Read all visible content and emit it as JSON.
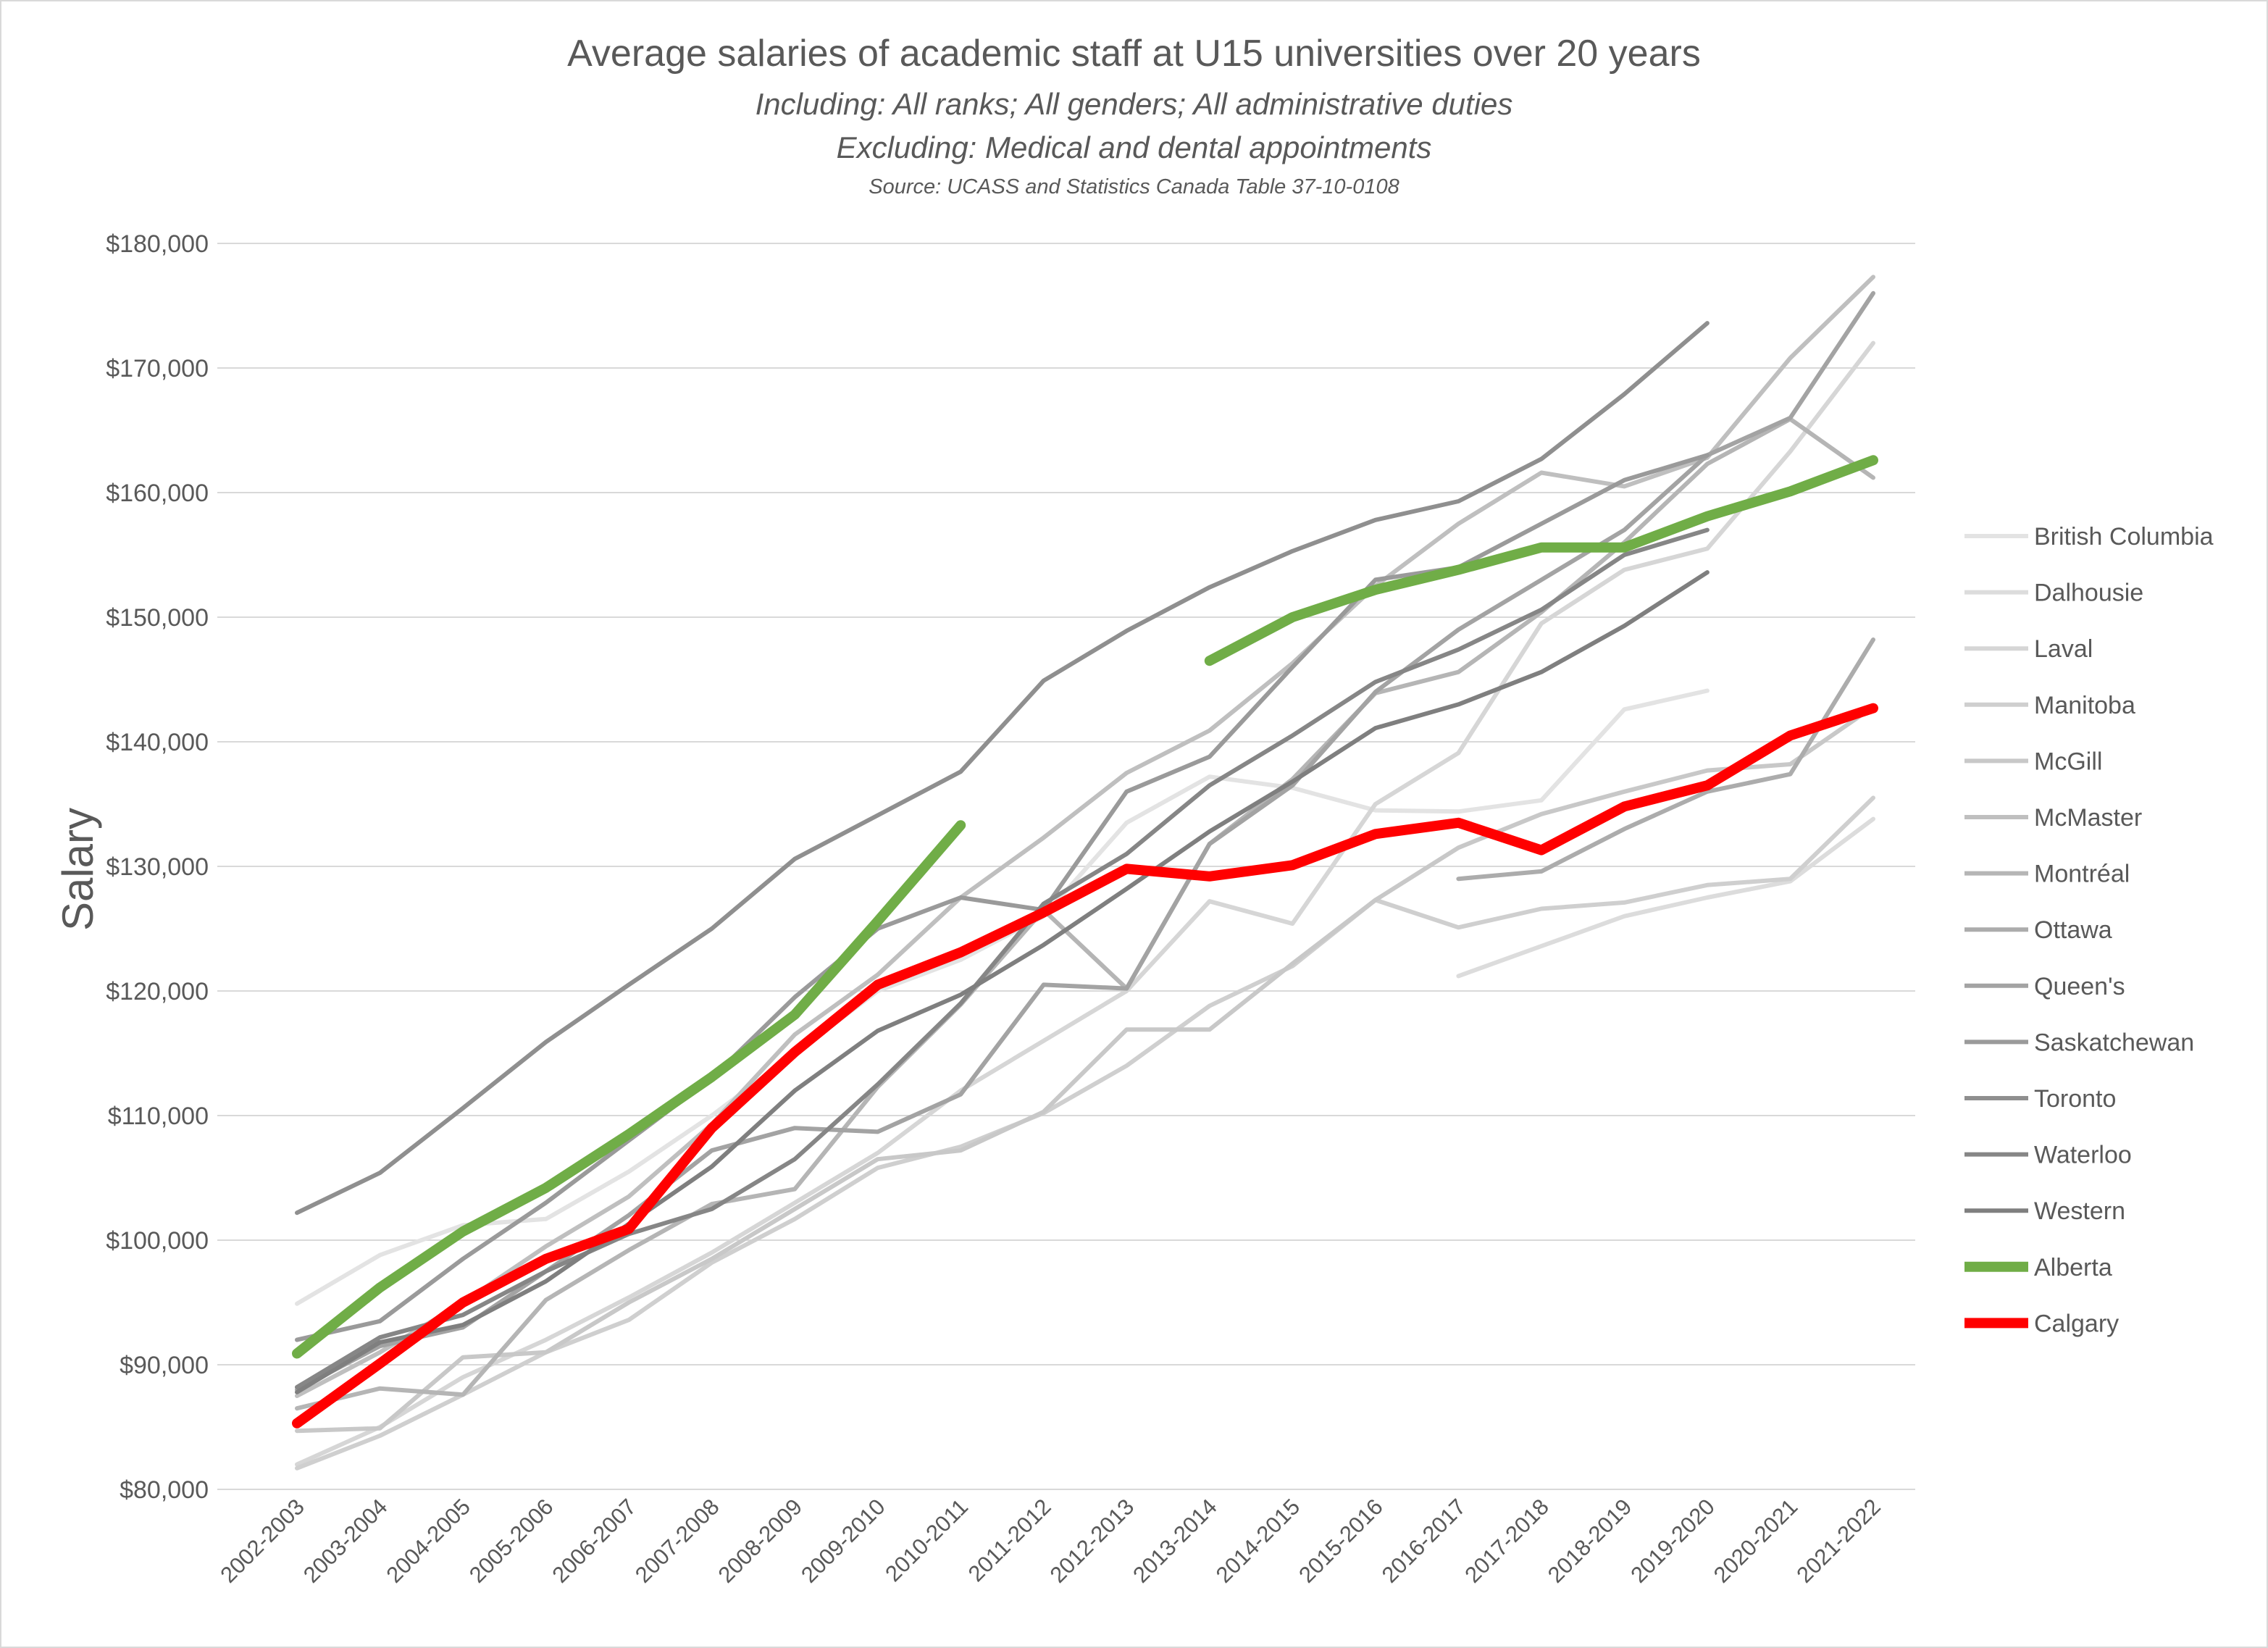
{
  "chart_data": {
    "type": "line",
    "title": "Average salaries of academic staff at U15 universities over 20 years",
    "subtitle_lines": [
      "Including: All ranks; All genders; All administrative duties",
      "Excluding: Medical and dental appointments"
    ],
    "source": "Source: UCASS and Statistics Canada Table 37-10-0108",
    "xlabel": "",
    "ylabel": "Salary",
    "ylim": [
      80000,
      180000
    ],
    "ytick_step": 10000,
    "ytick_labels": [
      "$80,000",
      "$90,000",
      "$100,000",
      "$110,000",
      "$120,000",
      "$130,000",
      "$140,000",
      "$150,000",
      "$160,000",
      "$170,000",
      "$180,000"
    ],
    "grid": true,
    "legend_position": "right",
    "categories": [
      "2002-2003",
      "2003-2004",
      "2004-2005",
      "2005-2006",
      "2006-2007",
      "2007-2008",
      "2008-2009",
      "2009-2010",
      "2010-2011",
      "2011-2012",
      "2012-2013",
      "2013-2014",
      "2014-2015",
      "2015-2016",
      "2016-2017",
      "2017-2018",
      "2018-2019",
      "2019-2020",
      "2020-2021",
      "2021-2022"
    ],
    "series": [
      {
        "name": "British Columbia",
        "color": "#e3e3e3",
        "width": 6,
        "values": [
          94900,
          98800,
          101200,
          101700,
          105500,
          110000,
          115000,
          120000,
          122500,
          126000,
          133500,
          137200,
          136300,
          134500,
          134400,
          135300,
          142600,
          144100,
          null,
          null
        ]
      },
      {
        "name": "Dalhousie",
        "color": "#dcdcdc",
        "width": 6,
        "values": [
          null,
          null,
          null,
          null,
          null,
          null,
          null,
          null,
          null,
          null,
          null,
          null,
          null,
          null,
          121200,
          123600,
          126000,
          127500,
          128800,
          133800
        ]
      },
      {
        "name": "Laval",
        "color": "#d6d6d6",
        "width": 6,
        "values": [
          82000,
          85000,
          89000,
          92000,
          95400,
          99000,
          103000,
          107000,
          112000,
          116000,
          120000,
          127200,
          125400,
          135000,
          139100,
          149500,
          153800,
          155500,
          163300,
          172000
        ]
      },
      {
        "name": "Manitoba",
        "color": "#cfcfcf",
        "width": 6,
        "values": [
          81700,
          84300,
          87600,
          91000,
          93600,
          98200,
          101700,
          105800,
          107500,
          110200,
          114000,
          118800,
          122000,
          127300,
          125100,
          126600,
          127100,
          128500,
          129000,
          135500
        ]
      },
      {
        "name": "McGill",
        "color": "#c8c8c8",
        "width": 6,
        "values": [
          84700,
          84900,
          90600,
          91000,
          95000,
          98500,
          102500,
          106500,
          107200,
          110300,
          116900,
          116900,
          122200,
          127300,
          131500,
          134200,
          136000,
          137700,
          138200,
          142800
        ]
      },
      {
        "name": "McMaster",
        "color": "#bfbfbf",
        "width": 6,
        "values": [
          87500,
          91000,
          95000,
          99500,
          103500,
          109300,
          116500,
          121300,
          127500,
          132300,
          137500,
          140900,
          146300,
          152500,
          157500,
          161600,
          160500,
          162800,
          170800,
          177300
        ]
      },
      {
        "name": "Montréal",
        "color": "#b5b5b5",
        "width": 6,
        "values": [
          86500,
          88100,
          87600,
          95200,
          99200,
          102900,
          104100,
          112300,
          118900,
          126500,
          120200,
          131800,
          137000,
          143900,
          145600,
          150400,
          156000,
          162300,
          165900,
          161200
        ]
      },
      {
        "name": "Ottawa",
        "color": "#acacac",
        "width": 6,
        "values": [
          null,
          null,
          null,
          null,
          null,
          null,
          null,
          null,
          null,
          null,
          null,
          null,
          null,
          null,
          129000,
          129600,
          133000,
          136000,
          137400,
          148200
        ]
      },
      {
        "name": "Queen's",
        "color": "#a3a3a3",
        "width": 6,
        "values": [
          88000,
          91500,
          93000,
          97500,
          102000,
          107200,
          109000,
          108700,
          111700,
          120500,
          120200,
          131800,
          136500,
          144000,
          149000,
          153000,
          157000,
          163000,
          166000,
          176000
        ]
      },
      {
        "name": "Saskatchewan",
        "color": "#9a9a9a",
        "width": 6,
        "values": [
          92000,
          93500,
          98500,
          103000,
          108000,
          113000,
          119500,
          125000,
          127500,
          126500,
          136000,
          138800,
          146000,
          153000,
          154000,
          157500,
          161000,
          163000,
          null,
          null
        ]
      },
      {
        "name": "Toronto",
        "color": "#8f8f8f",
        "width": 6,
        "values": [
          102200,
          105400,
          110600,
          115900,
          120500,
          125000,
          130600,
          134100,
          137600,
          144900,
          148900,
          152400,
          155300,
          157800,
          159300,
          162700,
          167900,
          173600,
          null,
          null
        ]
      },
      {
        "name": "Waterloo",
        "color": "#868686",
        "width": 6,
        "values": [
          88200,
          92200,
          94000,
          97500,
          100500,
          102500,
          106500,
          112500,
          119000,
          127000,
          131000,
          136500,
          140500,
          144800,
          147400,
          150600,
          155000,
          157000,
          null,
          null
        ]
      },
      {
        "name": "Western",
        "color": "#7f7f7f",
        "width": 6,
        "values": [
          87800,
          91800,
          93200,
          96700,
          101300,
          105900,
          112000,
          116800,
          119700,
          123700,
          128200,
          132800,
          136800,
          141100,
          143000,
          145600,
          149300,
          153600,
          null,
          null
        ]
      },
      {
        "name": "Alberta",
        "color": "#70ad47",
        "width": 14,
        "values": [
          90900,
          96200,
          100700,
          104200,
          108500,
          113100,
          118100,
          125600,
          133300,
          null,
          null,
          146500,
          150000,
          152200,
          153800,
          155600,
          155600,
          158100,
          160100,
          162600
        ]
      },
      {
        "name": "Calgary",
        "color": "#ff0000",
        "width": 14,
        "values": [
          85300,
          90100,
          95000,
          98500,
          100900,
          109000,
          115100,
          120500,
          123100,
          126300,
          129800,
          129200,
          130100,
          132600,
          133500,
          131300,
          134800,
          136500,
          140500,
          142700
        ]
      }
    ]
  }
}
